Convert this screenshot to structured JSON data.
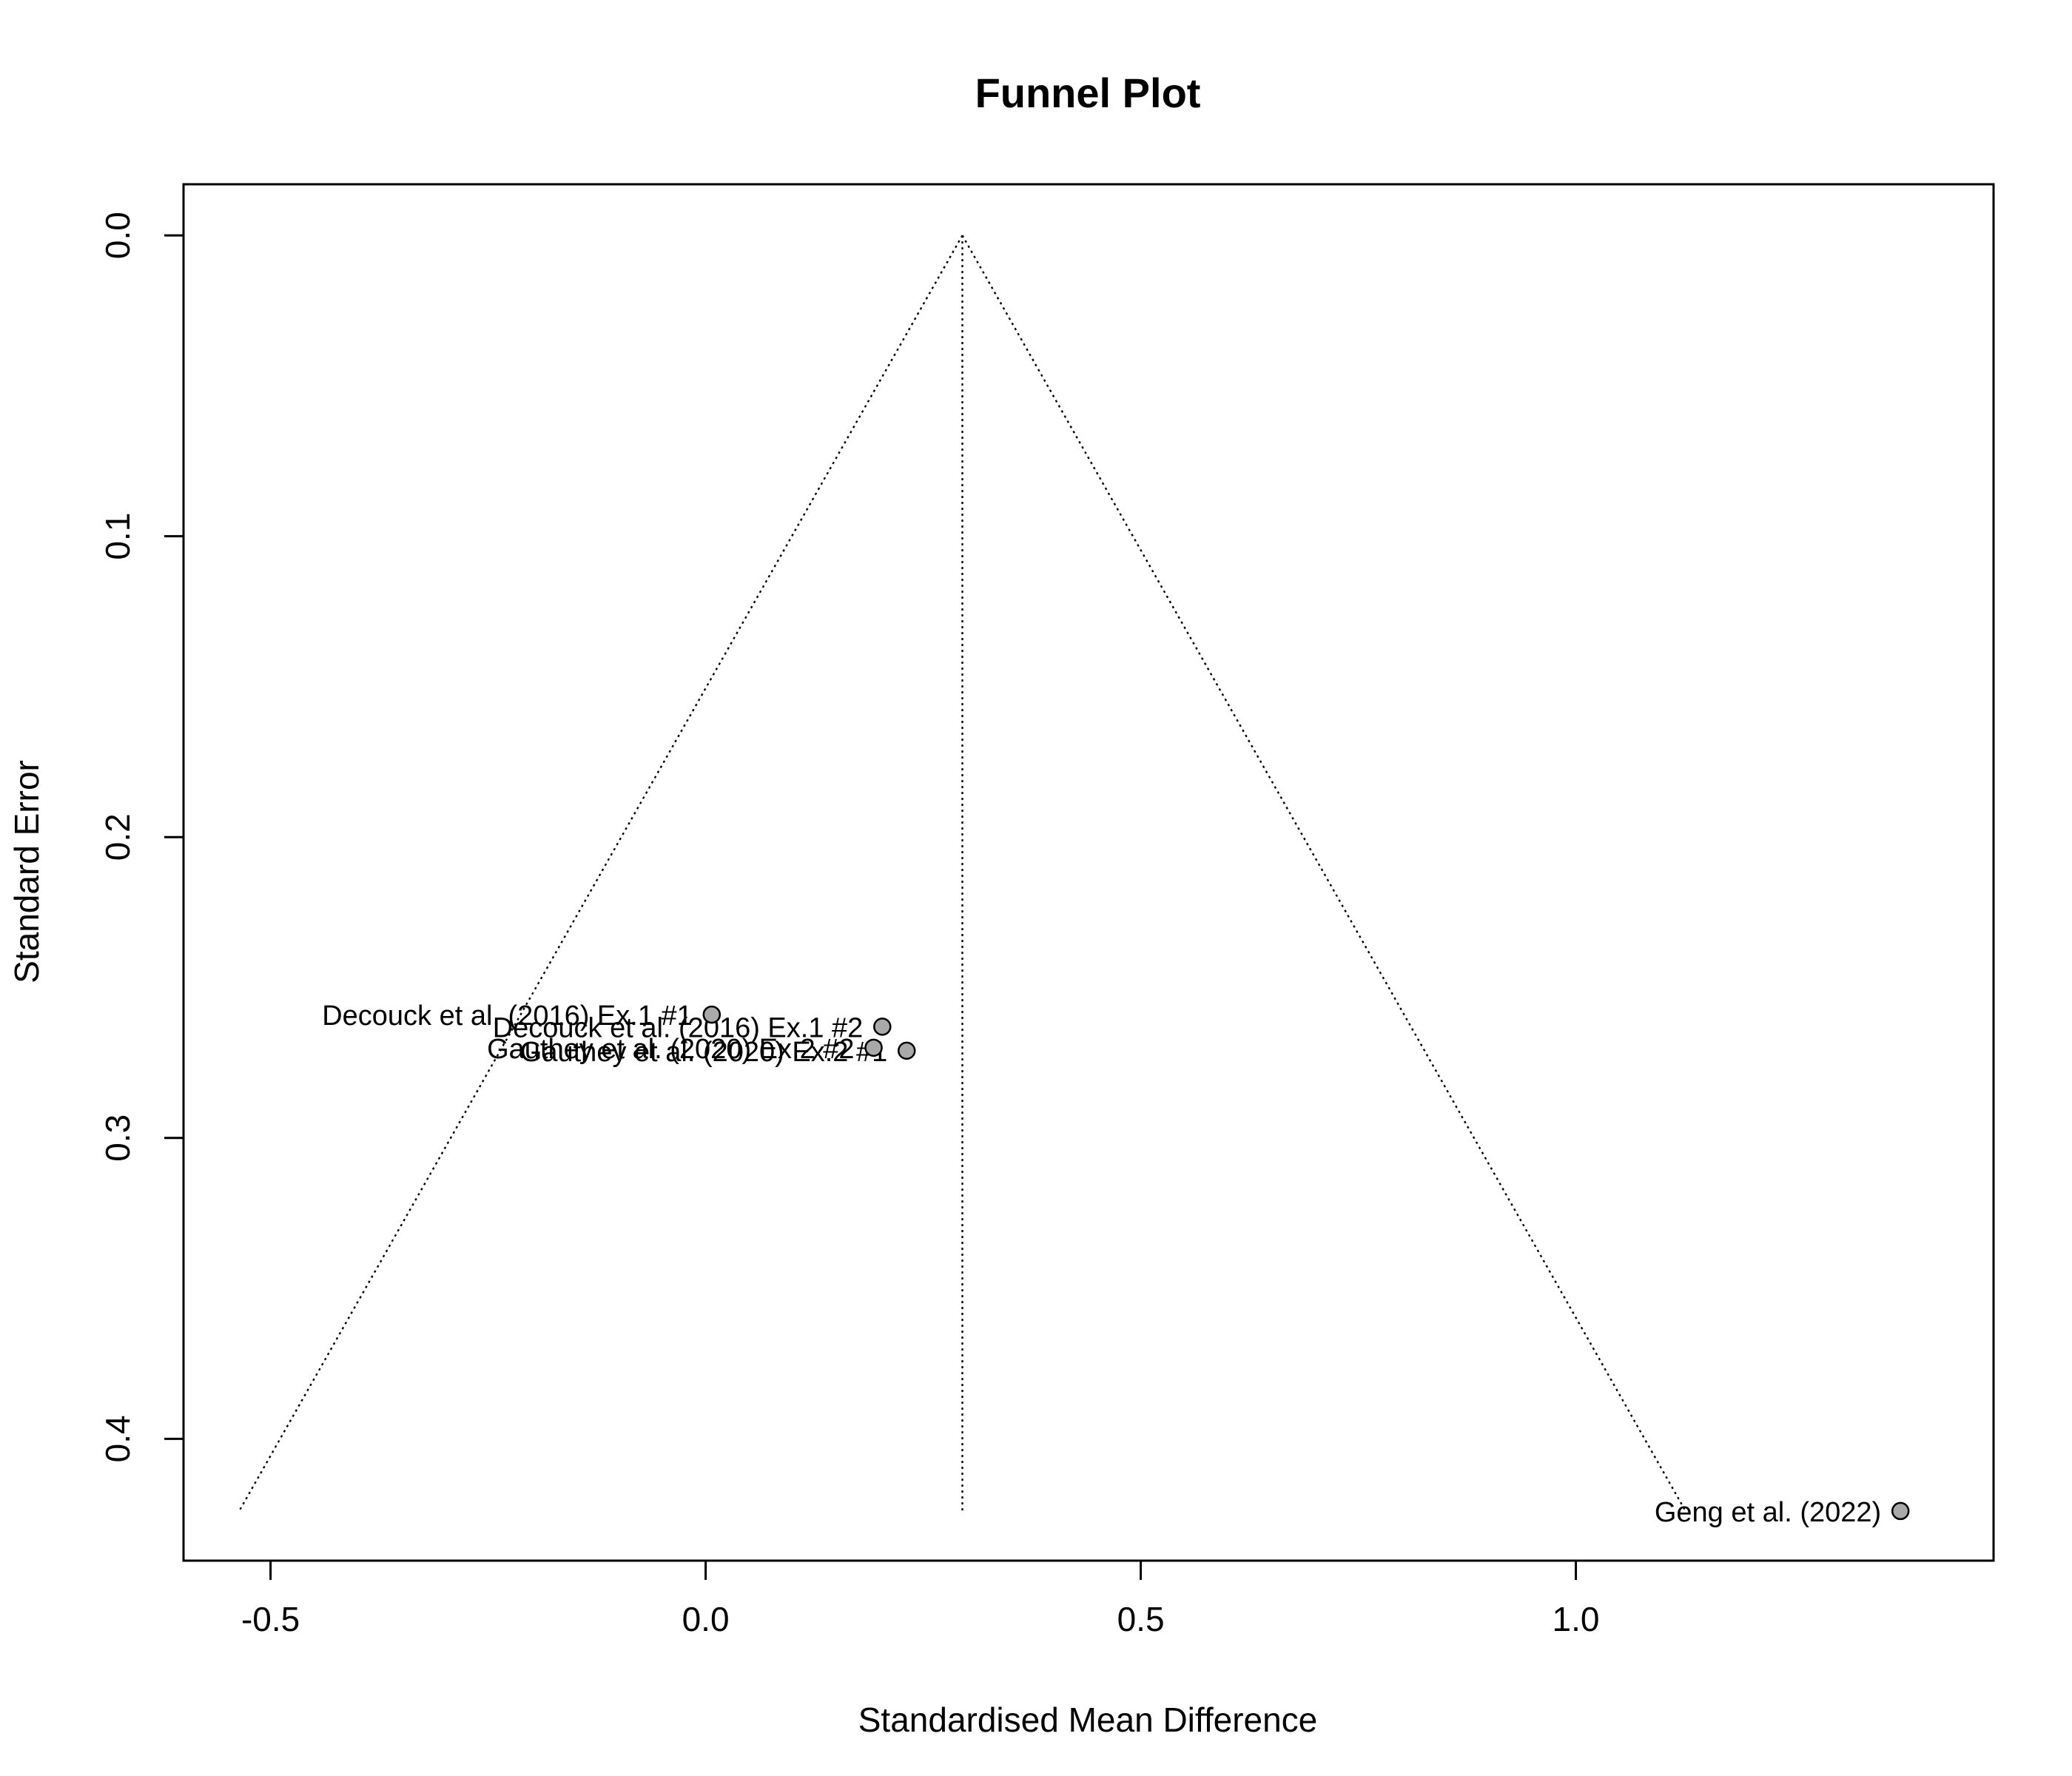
{
  "chart_data": {
    "type": "scatter",
    "title": "Funnel Plot",
    "xlabel": "Standardised Mean Difference",
    "ylabel": "Standard Error",
    "xlim": [
      -0.6,
      1.48
    ],
    "ylim": [
      0.4405,
      -0.017
    ],
    "y_reversed": true,
    "grid": false,
    "x_ticks": [
      {
        "value": -0.5,
        "label": "-0.5"
      },
      {
        "value": 0.0,
        "label": "0.0"
      },
      {
        "value": 0.5,
        "label": "0.5"
      },
      {
        "value": 1.0,
        "label": "1.0"
      }
    ],
    "y_ticks": [
      {
        "value": 0.0,
        "label": "0.0"
      },
      {
        "value": 0.1,
        "label": "0.1"
      },
      {
        "value": 0.2,
        "label": "0.2"
      },
      {
        "value": 0.3,
        "label": "0.3"
      },
      {
        "value": 0.4,
        "label": "0.4"
      }
    ],
    "pooled_effect": 0.295,
    "funnel": {
      "se_max": 0.424,
      "left_x": -0.536,
      "right_x": 1.126
    },
    "points": [
      {
        "label": "Decouck et al. (2016) Ex.1 #1",
        "x": 0.007,
        "y": 0.259
      },
      {
        "label": "Decouck et al. (2016) Ex.1 #2",
        "x": 0.203,
        "y": 0.263
      },
      {
        "label": "Gauthey et al. (2020) Ex.2 #2",
        "x": 0.193,
        "y": 0.27
      },
      {
        "label": "Gauthey et al. (2020) Ex.2 #1",
        "x": 0.231,
        "y": 0.271
      },
      {
        "label": "Geng et al. (2022)",
        "x": 1.373,
        "y": 0.424
      }
    ],
    "colors": {
      "point_fill": "#a9a9a9",
      "point_stroke": "#000000",
      "line": "#000000"
    }
  }
}
